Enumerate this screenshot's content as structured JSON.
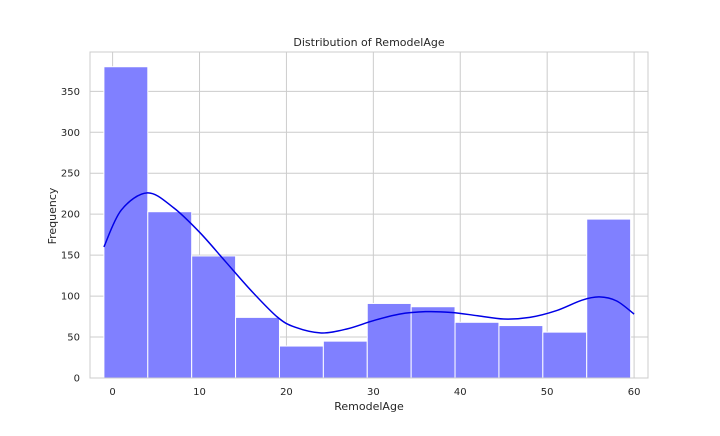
{
  "chart_data": {
    "type": "bar",
    "title": "Distribution of RemodelAge",
    "xlabel": "RemodelAge",
    "ylabel": "Frequency",
    "xlim": [
      -2.6,
      61.6
    ],
    "ylim": [
      0,
      398
    ],
    "xticks": [
      0,
      10,
      20,
      30,
      40,
      50,
      60
    ],
    "yticks": [
      0,
      50,
      100,
      150,
      200,
      250,
      300,
      350
    ],
    "grid": true,
    "bins": [
      {
        "x0": -1,
        "x1": 4.05,
        "value": 380
      },
      {
        "x0": 4.05,
        "x1": 9.1,
        "value": 203
      },
      {
        "x0": 9.1,
        "x1": 14.15,
        "value": 149
      },
      {
        "x0": 14.15,
        "x1": 19.2,
        "value": 74
      },
      {
        "x0": 19.2,
        "x1": 24.25,
        "value": 39
      },
      {
        "x0": 24.25,
        "x1": 29.3,
        "value": 45
      },
      {
        "x0": 29.3,
        "x1": 34.35,
        "value": 91
      },
      {
        "x0": 34.35,
        "x1": 39.4,
        "value": 87
      },
      {
        "x0": 39.4,
        "x1": 44.45,
        "value": 68
      },
      {
        "x0": 44.45,
        "x1": 49.5,
        "value": 64
      },
      {
        "x0": 49.5,
        "x1": 54.55,
        "value": 56
      },
      {
        "x0": 54.55,
        "x1": 59.6,
        "value": 194
      }
    ],
    "kde": {
      "x": [
        -1,
        1,
        4,
        7,
        10,
        13,
        16,
        19,
        21,
        24,
        27,
        30,
        33,
        36,
        39,
        42,
        45,
        48,
        51,
        54,
        56,
        58,
        60
      ],
      "y": [
        160,
        205,
        226,
        208,
        178,
        142,
        106,
        74,
        62,
        55,
        60,
        70,
        78,
        81,
        80,
        76,
        72,
        74,
        82,
        95,
        99,
        94,
        78
      ]
    },
    "colors": {
      "bar_fill": "#8080ff",
      "bar_edge": "#ffffff",
      "kde_line": "#0000e6",
      "grid": "#cccccc",
      "axes_edge": "#cccccc"
    }
  }
}
